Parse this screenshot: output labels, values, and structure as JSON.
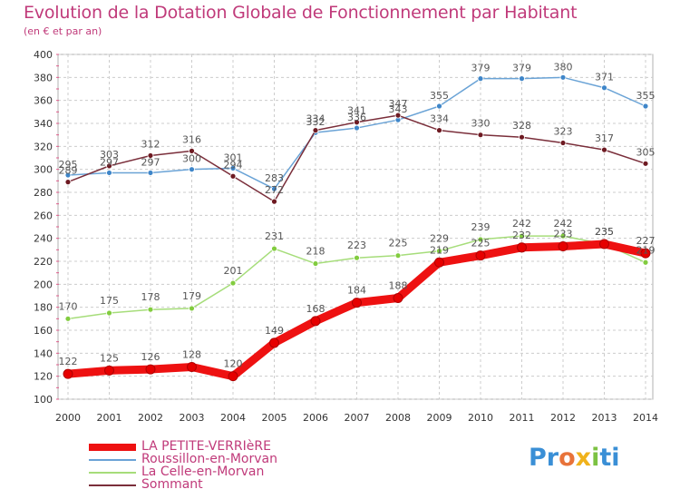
{
  "title": "Evolution de la Dotation Globale de Fonctionnement par Habitant",
  "subtitle": "(en € et par an)",
  "logo": {
    "p": "Pr",
    "o": "o",
    "x": "x",
    "i": "i",
    "ti": "ti"
  },
  "colors": {
    "title": "#c03a7a",
    "grid": "#cccccc",
    "axis_text": "#333333",
    "label_text": "#555555"
  },
  "chart_data": {
    "type": "line",
    "title": "Evolution de la Dotation Globale de Fonctionnement par Habitant",
    "subtitle": "(en € et par an)",
    "xlabel": "",
    "ylabel": "",
    "x": [
      "2000",
      "2001",
      "2002",
      "2003",
      "2004",
      "2005",
      "2006",
      "2007",
      "2008",
      "2009",
      "2010",
      "2011",
      "2012",
      "2013",
      "2014"
    ],
    "ylim": [
      100,
      400
    ],
    "yticks": [
      100,
      120,
      140,
      160,
      180,
      200,
      220,
      240,
      260,
      280,
      300,
      320,
      340,
      360,
      380,
      400
    ],
    "grid": true,
    "legend": "bottom-left",
    "series": [
      {
        "name": "LA PETITE-VERRIèRE",
        "color": "#ee1111",
        "marker": "#e60000",
        "values": [
          122,
          125,
          126,
          128,
          120,
          149,
          168,
          184,
          188,
          219,
          225,
          232,
          233,
          235,
          227
        ]
      },
      {
        "name": "Roussillon-en-Morvan",
        "color": "#6aa3d6",
        "marker": "#3f86c9",
        "values": [
          295,
          297,
          297,
          300,
          301,
          283,
          332,
          336,
          343,
          355,
          379,
          379,
          380,
          371,
          355
        ]
      },
      {
        "name": "La Celle-en-Morvan",
        "color": "#a6dd7a",
        "marker": "#82cc3f",
        "values": [
          170,
          175,
          178,
          179,
          201,
          231,
          218,
          223,
          225,
          229,
          239,
          242,
          242,
          235,
          219
        ]
      },
      {
        "name": "Sommant",
        "color": "#7a2e3a",
        "marker": "#6e1a22",
        "values": [
          289,
          303,
          312,
          316,
          294,
          272,
          334,
          341,
          347,
          334,
          330,
          328,
          323,
          317,
          305
        ]
      }
    ]
  }
}
